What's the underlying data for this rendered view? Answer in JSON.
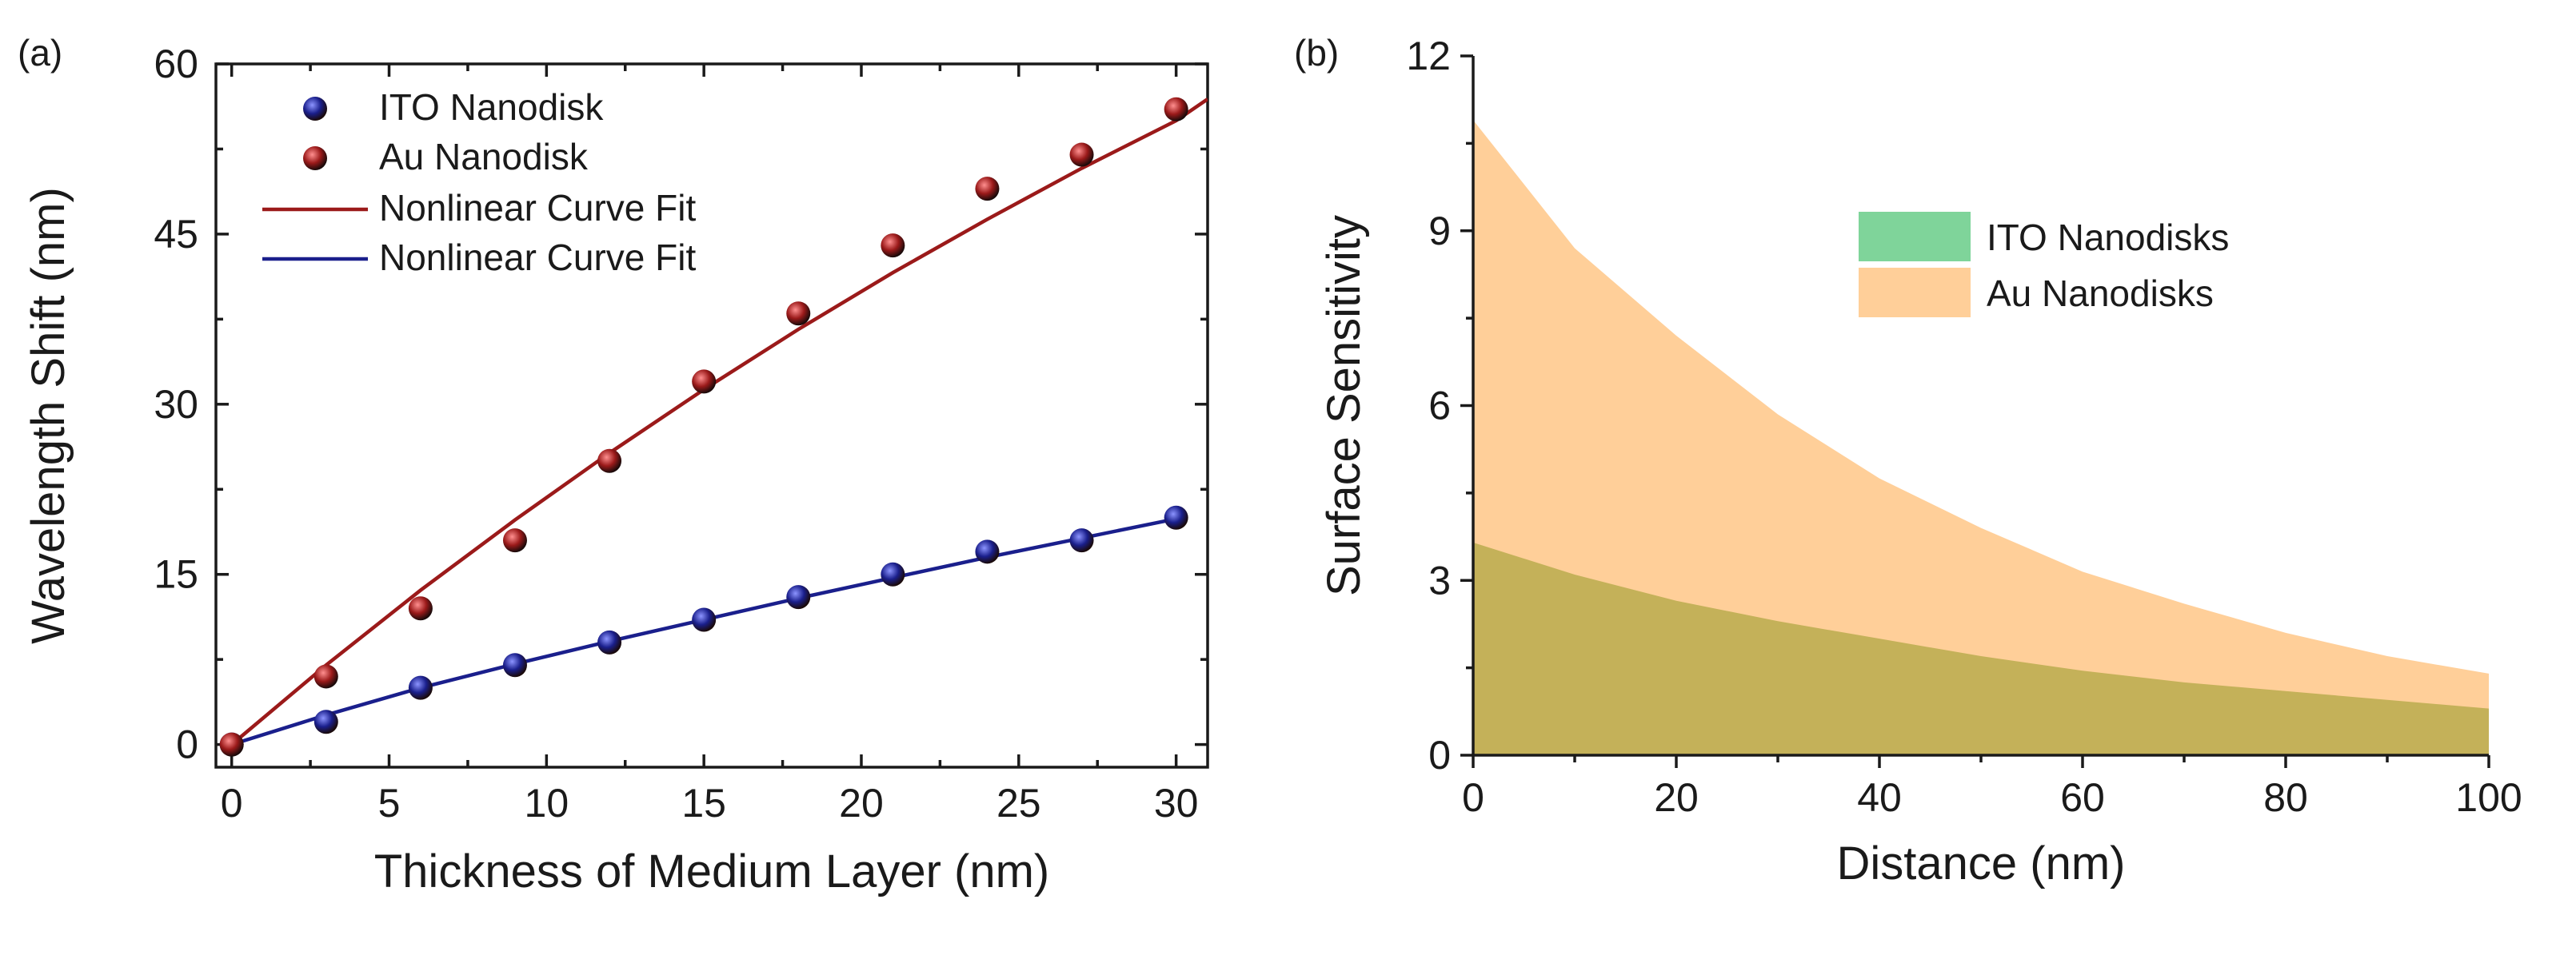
{
  "chart_data": [
    {
      "panel_label": "(a)",
      "type": "scatter",
      "xlabel": "Thickness of Medium Layer (nm)",
      "ylabel": "Wavelength Shift (nm)",
      "xlim": [
        -0.5,
        31
      ],
      "ylim": [
        -2,
        60
      ],
      "xticks": [
        0,
        5,
        10,
        15,
        20,
        25,
        30
      ],
      "yticks": [
        0,
        15,
        30,
        45,
        60
      ],
      "legend_position": "top-left",
      "series": [
        {
          "name": "ITO Nanodisk",
          "kind": "points",
          "color": "#1a1f8c",
          "x": [
            0,
            3,
            6,
            9,
            12,
            15,
            18,
            21,
            24,
            27,
            30
          ],
          "y": [
            0,
            2,
            5,
            7,
            9,
            11,
            13,
            15,
            17,
            18,
            20
          ]
        },
        {
          "name": "Au Nanodisk",
          "kind": "points",
          "color": "#9b1a1a",
          "x": [
            0,
            3,
            6,
            9,
            12,
            15,
            18,
            21,
            24,
            27,
            30
          ],
          "y": [
            0,
            6,
            12,
            18,
            25,
            32,
            38,
            44,
            49,
            52,
            56
          ]
        },
        {
          "name": "Nonlinear Curve Fit",
          "kind": "line",
          "color": "#9b1a1a",
          "x": [
            0,
            3,
            6,
            9,
            12,
            15,
            18,
            21,
            24,
            27,
            30,
            31
          ],
          "y": [
            0,
            7,
            13.6,
            19.8,
            25.7,
            31.3,
            36.6,
            41.6,
            46.3,
            50.8,
            55,
            56.9
          ]
        },
        {
          "name": "Nonlinear Curve Fit",
          "kind": "line",
          "color": "#1a1f8c",
          "x": [
            0,
            3,
            6,
            9,
            12,
            15,
            18,
            21,
            24,
            27,
            30
          ],
          "y": [
            0,
            2.6,
            5,
            7.1,
            9.1,
            11,
            12.9,
            14.7,
            16.5,
            18.2,
            19.9
          ]
        }
      ]
    },
    {
      "panel_label": "(b)",
      "type": "area",
      "xlabel": "Distance (nm)",
      "ylabel": "Surface Sensitivity",
      "xlim": [
        0,
        100
      ],
      "ylim": [
        0,
        12
      ],
      "xticks": [
        0,
        20,
        40,
        60,
        80,
        100
      ],
      "yticks": [
        0,
        3,
        6,
        9,
        12
      ],
      "legend_position": "upper-right",
      "series": [
        {
          "name": "ITO Nanodisks",
          "color": "#7fd49a",
          "x": [
            0,
            10,
            20,
            30,
            40,
            50,
            60,
            70,
            80,
            90,
            100
          ],
          "y": [
            3.65,
            3.1,
            2.65,
            2.3,
            2.0,
            1.7,
            1.45,
            1.25,
            1.1,
            0.95,
            0.8
          ]
        },
        {
          "name": "Au Nanodisks",
          "color": "#ffcf99",
          "x": [
            0,
            10,
            20,
            30,
            40,
            50,
            60,
            70,
            80,
            90,
            100
          ],
          "y": [
            10.9,
            8.7,
            7.2,
            5.85,
            4.75,
            3.9,
            3.15,
            2.6,
            2.1,
            1.7,
            1.4
          ]
        }
      ]
    }
  ]
}
